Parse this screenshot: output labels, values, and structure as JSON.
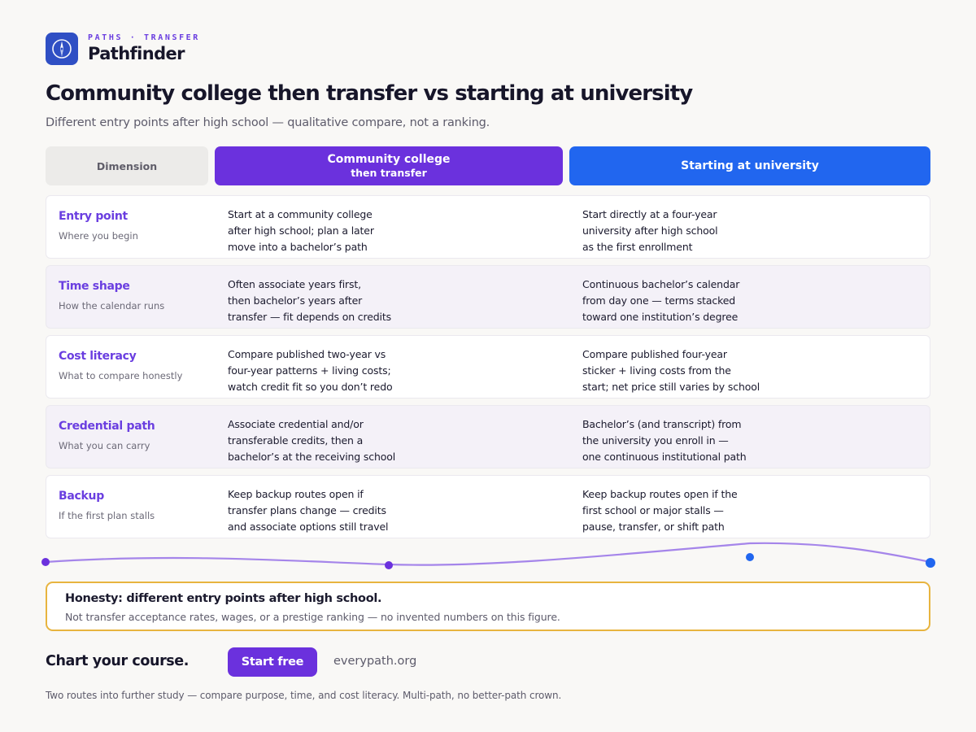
{
  "brand": {
    "eyebrow": "PATHS · TRANSFER",
    "name": "Pathfinder",
    "icon": "compass-icon",
    "color": "#2f4fc4"
  },
  "title": "Community college then transfer vs starting at university",
  "subtitle": "Different entry points after high school — qualitative compare, not a ranking.",
  "columns": {
    "dimension": "Dimension",
    "cc_line1": "Community college",
    "cc_line2": "then transfer",
    "uni": "Starting at university",
    "cc_color": "#6b31dd",
    "uni_color": "#2166ef"
  },
  "rows": [
    {
      "label": "Entry point",
      "sub": "Where you begin",
      "cc": "Start at a community college\nafter high school; plan a later\nmove into a bachelor’s path",
      "uni": "Start directly at a four-year\nuniversity after high school\nas the first enrollment"
    },
    {
      "label": "Time shape",
      "sub": "How the calendar runs",
      "cc": "Often associate years first,\nthen bachelor’s years after\ntransfer — fit depends on credits",
      "uni": "Continuous bachelor’s calendar\nfrom day one — terms stacked\ntoward one institution’s degree"
    },
    {
      "label": "Cost literacy",
      "sub": "What to compare honestly",
      "cc": "Compare published two-year vs\nfour-year patterns + living costs;\nwatch credit fit so you don’t redo",
      "uni": "Compare published four-year\nsticker + living costs from the\nstart; net price still varies by school"
    },
    {
      "label": "Credential path",
      "sub": "What you can carry",
      "cc": "Associate credential and/or\ntransferable credits, then a\nbachelor’s at the receiving school",
      "uni": "Bachelor’s (and transcript) from\nthe university you enroll in —\none continuous institutional path"
    },
    {
      "label": "Backup",
      "sub": "If the first plan stalls",
      "cc": "Keep backup routes open if\ntransfer plans change — credits\nand associate options still travel",
      "uni": "Keep backup routes open if the\nfirst school or major stalls —\npause, transfer, or shift path"
    }
  ],
  "honesty": {
    "title": "Honesty: different entry points after high school.",
    "text": "Not transfer acceptance rates, wages, or a prestige ranking — no invented numbers on this figure.",
    "border_color": "#e8b43f"
  },
  "cta": {
    "text": "Chart your course.",
    "button": "Start free",
    "url": "everypath.org"
  },
  "footer": "Two routes into further study — compare purpose, time, and cost literacy. Multi-path, no better-path crown."
}
